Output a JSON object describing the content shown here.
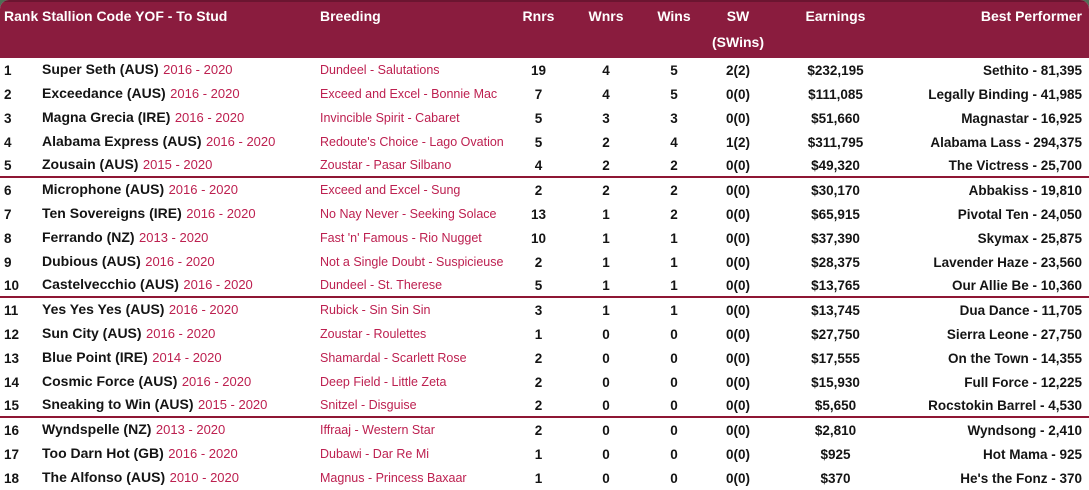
{
  "colors": {
    "maroon": "#8a1c3e",
    "crimson": "#bd2050",
    "sep": "#8e1634",
    "green": "#4e6e55",
    "ink": "#141414"
  },
  "table": {
    "header": {
      "rank": "Rank",
      "stallion": "Stallion Code YOF - To Stud",
      "breeding": "Breeding",
      "rnrs": "Rnrs",
      "wnrs": "Wnrs",
      "wins": "Wins",
      "sw_line1": "SW",
      "sw_line2": "(SWins)",
      "earnings": "Earnings",
      "best": "Best Performer"
    },
    "rows": [
      {
        "rank": "1",
        "name": "Super Seth (AUS)",
        "years": "2016 - 2020",
        "breeding": "Dundeel - Salutations",
        "rnrs": "19",
        "wnrs": "4",
        "wins": "5",
        "sw": "2(2)",
        "earnings": "$232,195",
        "best": "Sethito - 81,395",
        "separator_after": false
      },
      {
        "rank": "2",
        "name": "Exceedance (AUS)",
        "years": "2016 - 2020",
        "breeding": "Exceed and Excel - Bonnie Mac",
        "rnrs": "7",
        "wnrs": "4",
        "wins": "5",
        "sw": "0(0)",
        "earnings": "$111,085",
        "best": "Legally Binding - 41,985",
        "separator_after": false
      },
      {
        "rank": "3",
        "name": "Magna Grecia (IRE)",
        "years": "2016 - 2020",
        "breeding": "Invincible Spirit - Cabaret",
        "rnrs": "5",
        "wnrs": "3",
        "wins": "3",
        "sw": "0(0)",
        "earnings": "$51,660",
        "best": "Magnastar - 16,925",
        "separator_after": false
      },
      {
        "rank": "4",
        "name": "Alabama Express (AUS)",
        "years": "2016 - 2020",
        "breeding": "Redoute's Choice - Lago Ovation",
        "rnrs": "5",
        "wnrs": "2",
        "wins": "4",
        "sw": "1(2)",
        "earnings": "$311,795",
        "best": "Alabama Lass - 294,375",
        "separator_after": false
      },
      {
        "rank": "5",
        "name": "Zousain (AUS)",
        "years": "2015 - 2020",
        "breeding": "Zoustar - Pasar Silbano",
        "rnrs": "4",
        "wnrs": "2",
        "wins": "2",
        "sw": "0(0)",
        "earnings": "$49,320",
        "best": "The Victress - 25,700",
        "separator_after": true
      },
      {
        "rank": "6",
        "name": "Microphone (AUS)",
        "years": "2016 - 2020",
        "breeding": "Exceed and Excel - Sung",
        "rnrs": "2",
        "wnrs": "2",
        "wins": "2",
        "sw": "0(0)",
        "earnings": "$30,170",
        "best": "Abbakiss - 19,810",
        "separator_after": false
      },
      {
        "rank": "7",
        "name": "Ten Sovereigns (IRE)",
        "years": "2016 - 2020",
        "breeding": "No Nay Never - Seeking Solace",
        "rnrs": "13",
        "wnrs": "1",
        "wins": "2",
        "sw": "0(0)",
        "earnings": "$65,915",
        "best": "Pivotal Ten - 24,050",
        "separator_after": false
      },
      {
        "rank": "8",
        "name": "Ferrando (NZ)",
        "years": "2013 - 2020",
        "breeding": "Fast 'n' Famous - Rio Nugget",
        "rnrs": "10",
        "wnrs": "1",
        "wins": "1",
        "sw": "0(0)",
        "earnings": "$37,390",
        "best": "Skymax - 25,875",
        "separator_after": false
      },
      {
        "rank": "9",
        "name": "Dubious (AUS)",
        "years": "2016 - 2020",
        "breeding": "Not a Single Doubt - Suspicieuse",
        "rnrs": "2",
        "wnrs": "1",
        "wins": "1",
        "sw": "0(0)",
        "earnings": "$28,375",
        "best": "Lavender Haze - 23,560",
        "separator_after": false
      },
      {
        "rank": "10",
        "name": "Castelvecchio (AUS)",
        "years": "2016 - 2020",
        "breeding": "Dundeel - St. Therese",
        "rnrs": "5",
        "wnrs": "1",
        "wins": "1",
        "sw": "0(0)",
        "earnings": "$13,765",
        "best": "Our Allie Be - 10,360",
        "separator_after": true
      },
      {
        "rank": "11",
        "name": "Yes Yes Yes (AUS)",
        "years": "2016 - 2020",
        "breeding": "Rubick - Sin Sin Sin",
        "rnrs": "3",
        "wnrs": "1",
        "wins": "1",
        "sw": "0(0)",
        "earnings": "$13,745",
        "best": "Dua Dance - 11,705",
        "separator_after": false
      },
      {
        "rank": "12",
        "name": "Sun City (AUS)",
        "years": "2016 - 2020",
        "breeding": "Zoustar - Roulettes",
        "rnrs": "1",
        "wnrs": "0",
        "wins": "0",
        "sw": "0(0)",
        "earnings": "$27,750",
        "best": "Sierra Leone - 27,750",
        "separator_after": false
      },
      {
        "rank": "13",
        "name": "Blue Point (IRE)",
        "years": "2014 - 2020",
        "breeding": "Shamardal - Scarlett Rose",
        "rnrs": "2",
        "wnrs": "0",
        "wins": "0",
        "sw": "0(0)",
        "earnings": "$17,555",
        "best": "On the Town - 14,355",
        "separator_after": false
      },
      {
        "rank": "14",
        "name": "Cosmic Force (AUS)",
        "years": "2016 - 2020",
        "breeding": "Deep Field - Little Zeta",
        "rnrs": "2",
        "wnrs": "0",
        "wins": "0",
        "sw": "0(0)",
        "earnings": "$15,930",
        "best": "Full Force - 12,225",
        "separator_after": false
      },
      {
        "rank": "15",
        "name": "Sneaking to Win (AUS)",
        "years": "2015 - 2020",
        "breeding": "Snitzel - Disguise",
        "rnrs": "2",
        "wnrs": "0",
        "wins": "0",
        "sw": "0(0)",
        "earnings": "$5,650",
        "best": "Rocstokin Barrel - 4,530",
        "separator_after": true
      },
      {
        "rank": "16",
        "name": "Wyndspelle (NZ)",
        "years": "2013 - 2020",
        "breeding": "Iffraaj - Western Star",
        "rnrs": "2",
        "wnrs": "0",
        "wins": "0",
        "sw": "0(0)",
        "earnings": "$2,810",
        "best": "Wyndsong - 2,410",
        "separator_after": false
      },
      {
        "rank": "17",
        "name": "Too Darn Hot (GB)",
        "years": "2016 - 2020",
        "breeding": "Dubawi - Dar Re Mi",
        "rnrs": "1",
        "wnrs": "0",
        "wins": "0",
        "sw": "0(0)",
        "earnings": "$925",
        "best": "Hot Mama - 925",
        "separator_after": false
      },
      {
        "rank": "18",
        "name": "The Alfonso (AUS)",
        "years": "2010 - 2020",
        "breeding": "Magnus - Princess Baxaar",
        "rnrs": "1",
        "wnrs": "0",
        "wins": "0",
        "sw": "0(0)",
        "earnings": "$370",
        "best": "He's the Fonz - 370",
        "separator_after": false
      }
    ]
  }
}
